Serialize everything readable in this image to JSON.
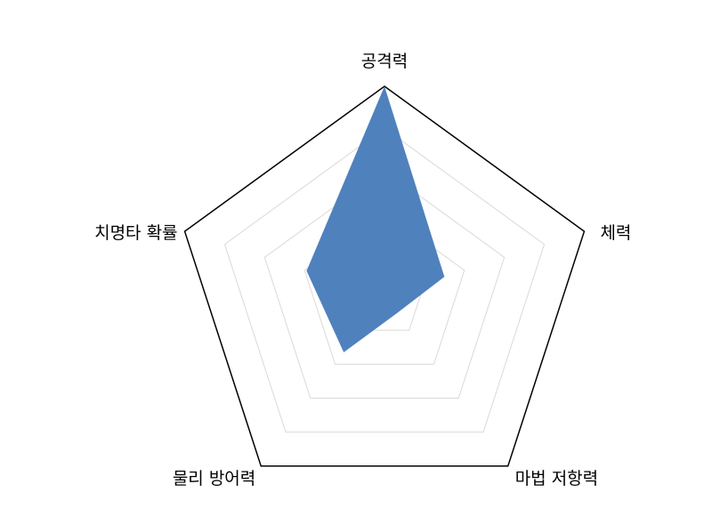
{
  "chart_data": {
    "type": "radar",
    "title": "",
    "axes": [
      "공격력",
      "체력",
      "마법 저항력",
      "물리 방어력",
      "치명타 확률"
    ],
    "series": [
      {
        "values": [
          10,
          3,
          1,
          3.3,
          3.9
        ],
        "color": "#4f81bd"
      }
    ],
    "range": [
      0,
      10
    ],
    "rings": 5,
    "grid": true,
    "grid_color": "#d9d9d9",
    "outer_color": "#000000"
  }
}
